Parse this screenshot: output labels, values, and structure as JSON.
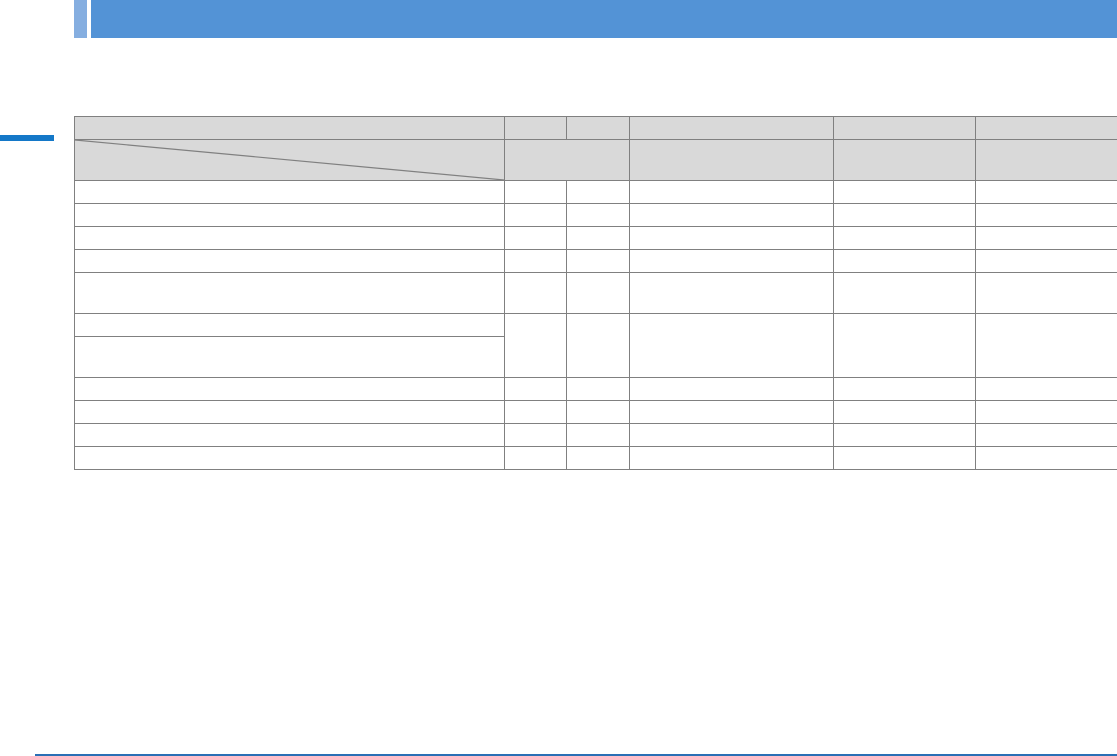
{
  "colors": {
    "header_bar": "#5393d6",
    "header_accent": "#85aee0",
    "side_marker": "#1478c8",
    "footer_rule": "#2a6fb5",
    "table_header_bg": "#d9d9d9",
    "table_border": "#808080"
  },
  "table": {
    "columns": 6,
    "body_rows": 11,
    "cells_text": "empty"
  }
}
